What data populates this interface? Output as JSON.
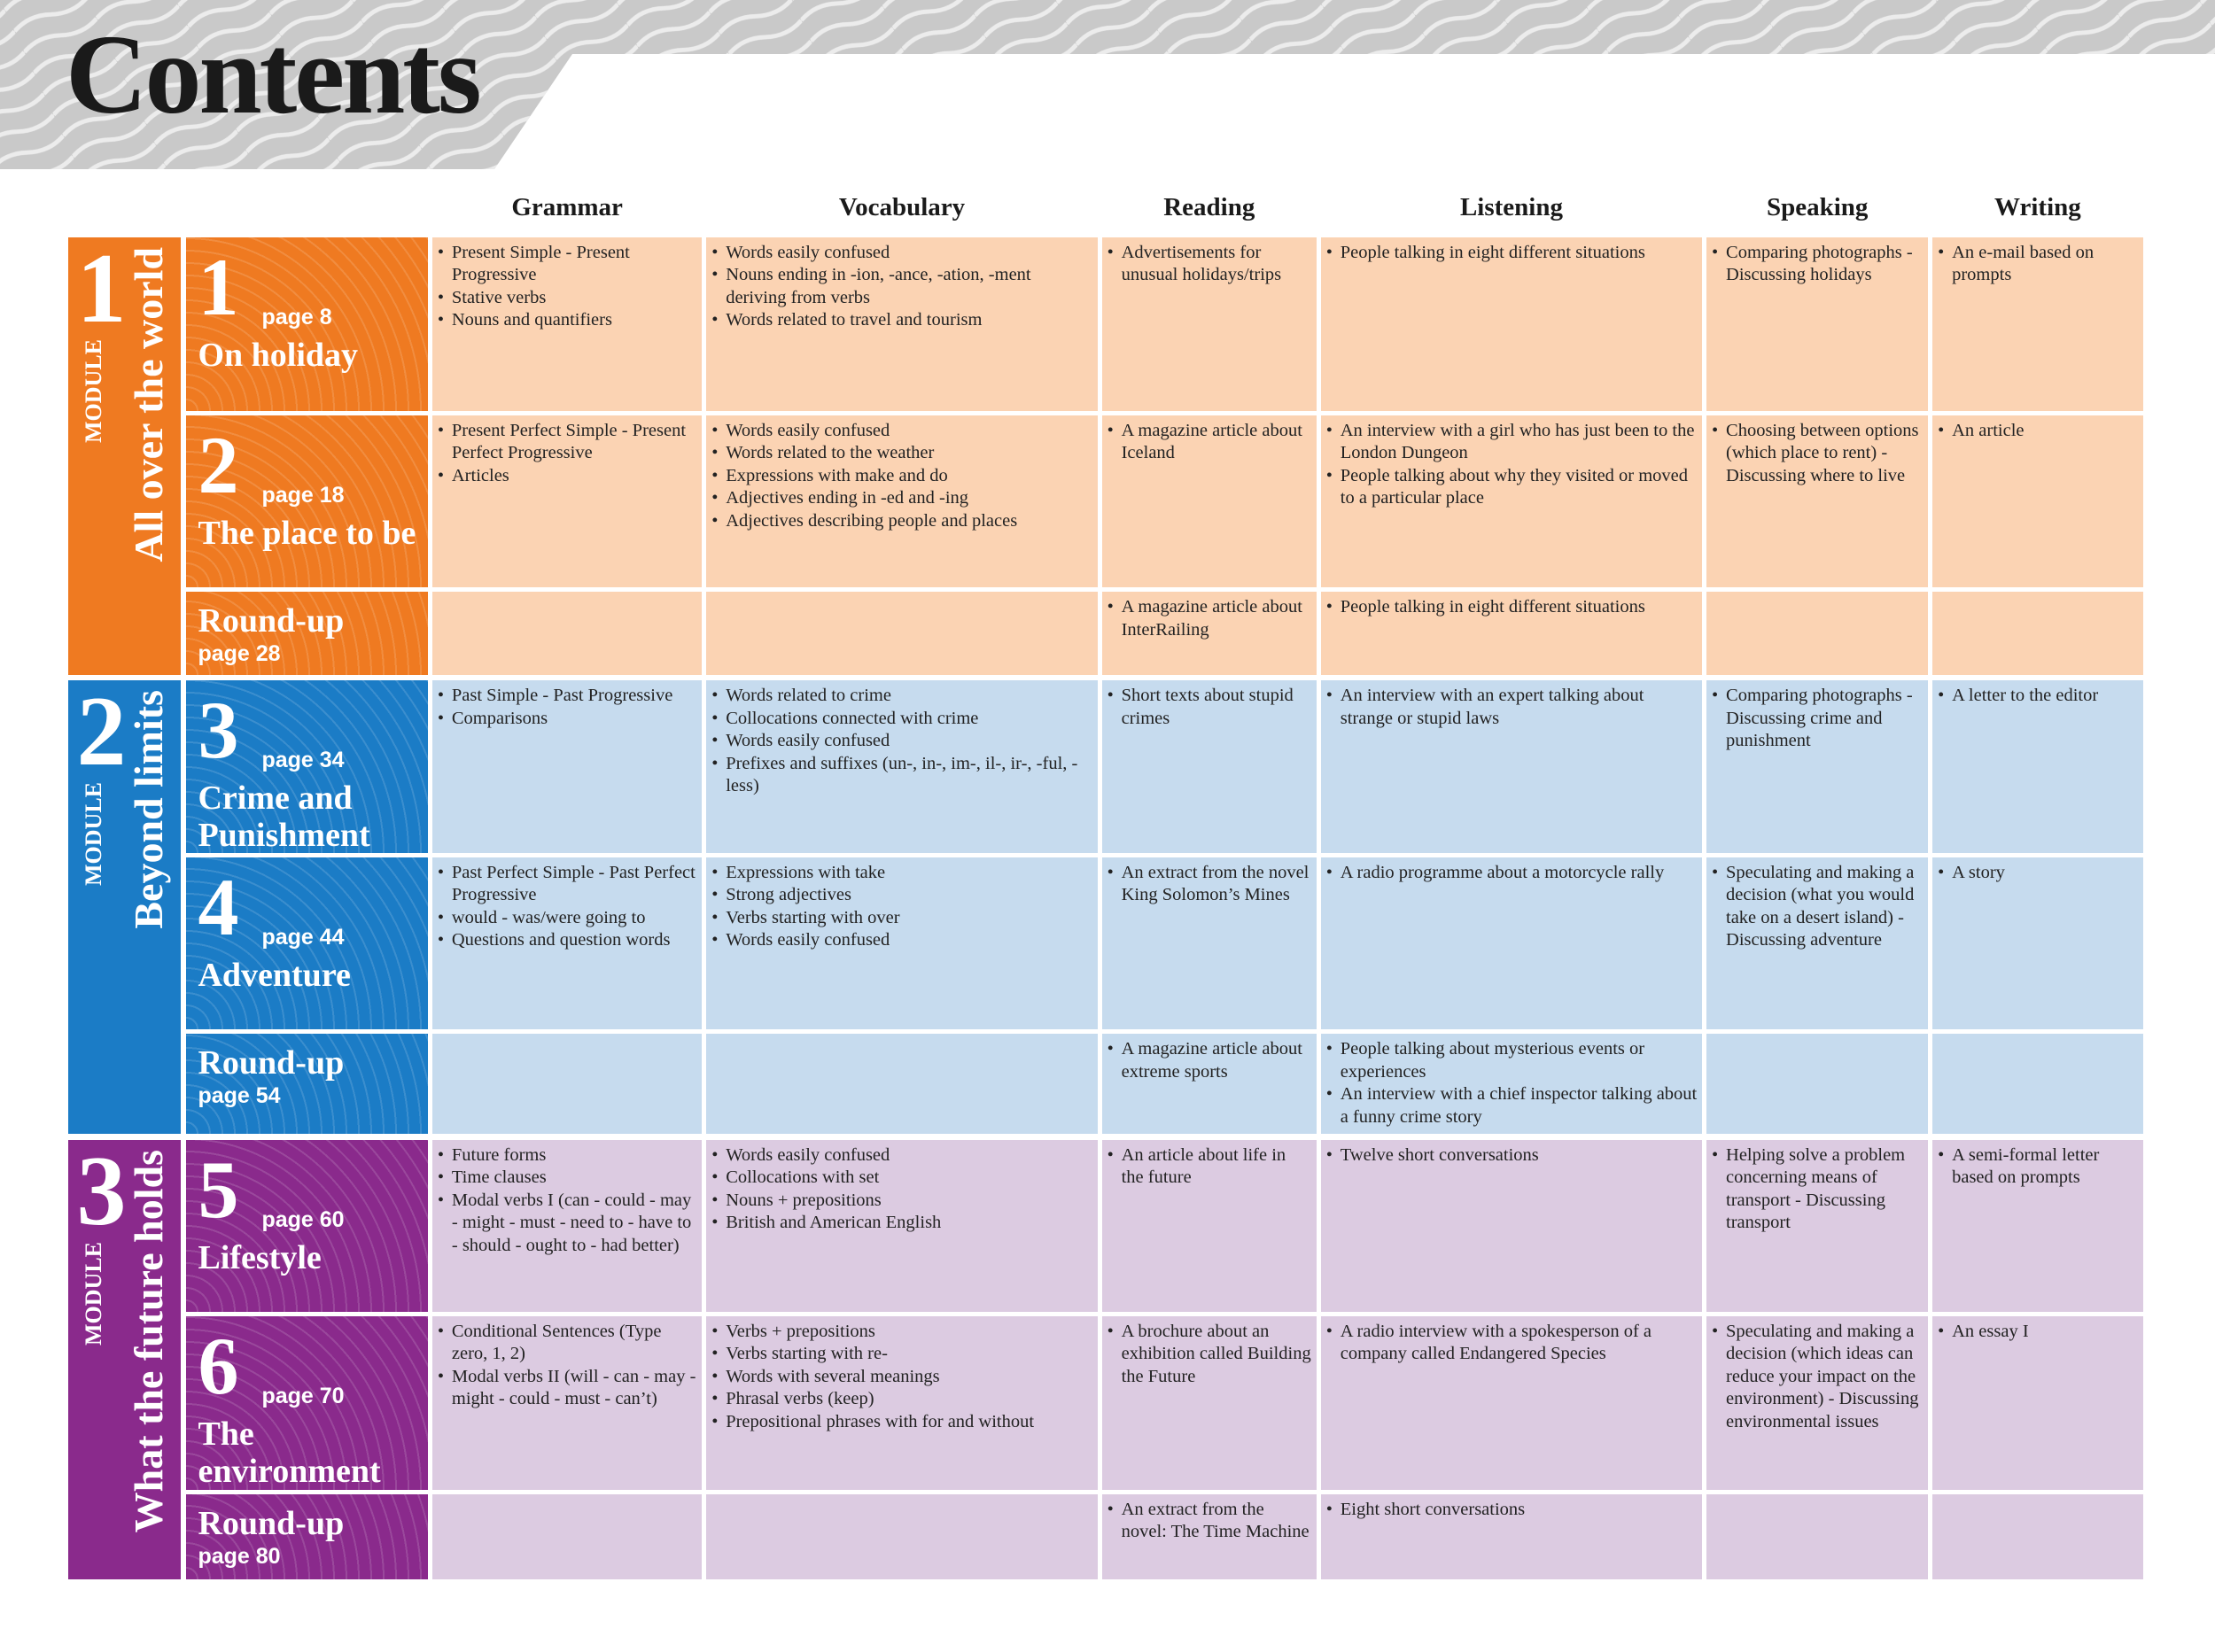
{
  "header": {
    "title": "Contents"
  },
  "columns": [
    "Grammar",
    "Vocabulary",
    "Reading",
    "Listening",
    "Speaking",
    "Writing"
  ],
  "modules": [
    {
      "number": "1",
      "label": "MODULE",
      "title": "All over the world",
      "units": [
        {
          "number": "1",
          "page": "page 8",
          "title": "On holiday",
          "cells": [
            [
              "Present Simple - Present Progressive",
              "Stative verbs",
              "Nouns and quantifiers"
            ],
            [
              "Words easily confused",
              "Nouns ending in -ion, -ance, -ation, -ment deriving from verbs",
              "Words related to travel and tourism"
            ],
            [
              "Advertisements for unusual holidays/trips"
            ],
            [
              "People talking in eight different situations"
            ],
            [
              "Comparing photographs - Discussing holidays"
            ],
            [
              "An e-mail  based on prompts"
            ]
          ]
        },
        {
          "number": "2",
          "page": "page 18",
          "title": "The place to be",
          "cells": [
            [
              "Present Perfect Simple - Present Perfect Progressive",
              "Articles"
            ],
            [
              "Words easily confused",
              "Words related to the weather",
              "Expressions with make and do",
              "Adjectives ending in -ed and -ing",
              "Adjectives describing people and places"
            ],
            [
              "A magazine article about Iceland"
            ],
            [
              "An interview with a girl who has just been to the London Dungeon",
              "People talking about why they visited or moved to a particular place"
            ],
            [
              "Choosing between options (which place to rent) - Discussing where to live"
            ],
            [
              "An article"
            ]
          ]
        },
        {
          "page": "page 28",
          "title": "Round-up",
          "cells": [
            [],
            [],
            [
              "A magazine article about InterRailing"
            ],
            [
              "People talking in eight different situations"
            ],
            [],
            []
          ]
        }
      ]
    },
    {
      "number": "2",
      "label": "MODULE",
      "title": "Beyond limits",
      "units": [
        {
          "number": "3",
          "page": "page 34",
          "title": "Crime and Punishment",
          "cells": [
            [
              "Past Simple - Past Progressive",
              "Comparisons"
            ],
            [
              "Words related to crime",
              "Collocations connected with crime",
              "Words easily confused",
              "Prefixes and suffixes (un-, in-, im-, il-, ir-, -ful, -less)"
            ],
            [
              "Short texts about stupid crimes"
            ],
            [
              "An interview with an expert talking about strange or stupid laws"
            ],
            [
              "Comparing photographs - Discussing crime and punishment"
            ],
            [
              "A letter to the editor"
            ]
          ]
        },
        {
          "number": "4",
          "page": "page 44",
          "title": "Adventure",
          "cells": [
            [
              "Past  Perfect Simple - Past Perfect Progressive",
              "would - was/were going to",
              "Questions and question words"
            ],
            [
              "Expressions with take",
              "Strong adjectives",
              "Verbs starting with over",
              "Words easily confused"
            ],
            [
              "An extract from the novel King Solomon’s Mines"
            ],
            [
              "A radio programme about a motorcycle rally"
            ],
            [
              "Speculating and making a decision (what you would take on a desert island) - Discussing adventure"
            ],
            [
              "A story"
            ]
          ]
        },
        {
          "page": "page 54",
          "title": "Round-up",
          "cells": [
            [],
            [],
            [
              "A magazine article about extreme sports"
            ],
            [
              "People talking about mysterious events or experiences",
              "An interview with a chief inspector talking about a funny crime story"
            ],
            [],
            []
          ]
        }
      ]
    },
    {
      "number": "3",
      "label": "MODULE",
      "title": "What the future holds",
      "units": [
        {
          "number": "5",
          "page": "page 60",
          "title": "Lifestyle",
          "cells": [
            [
              "Future forms",
              "Time clauses",
              "Modal verbs I (can - could - may - might - must - need to - have to - should - ought to - had better)"
            ],
            [
              "Words easily confused",
              "Collocations with set",
              "Nouns + prepositions",
              "British and American English"
            ],
            [
              "An article about life in the future"
            ],
            [
              "Twelve short conversations"
            ],
            [
              "Helping solve a problem concerning means of transport - Discussing transport"
            ],
            [
              "A semi-formal letter based on prompts"
            ]
          ]
        },
        {
          "number": "6",
          "page": "page 70",
          "title": "The environment",
          "cells": [
            [
              "Conditional Sentences (Type zero, 1, 2)",
              "Modal verbs II (will - can - may - might - could - must - can’t)"
            ],
            [
              "Verbs + prepositions",
              "Verbs starting with re-",
              "Words with several meanings",
              "Phrasal verbs (keep)",
              "Prepositional phrases with for and without"
            ],
            [
              "A brochure about an exhibition called Building the Future"
            ],
            [
              "A radio interview with a spokesperson of a company called Endangered Species"
            ],
            [
              "Speculating and making a decision (which ideas can reduce your impact on the environment) - Discussing environmental issues"
            ],
            [
              "An essay I"
            ]
          ]
        },
        {
          "page": "page 80",
          "title": "Round-up",
          "cells": [
            [],
            [],
            [
              "An extract from the novel: The Time Machine"
            ],
            [
              "Eight short conversations"
            ],
            [],
            []
          ]
        }
      ]
    }
  ]
}
